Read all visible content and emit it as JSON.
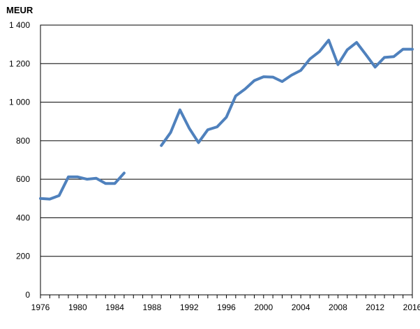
{
  "chart_data": {
    "type": "line",
    "title": "",
    "ylabel": "MEUR",
    "xlabel": "",
    "xlim": [
      1976,
      2016
    ],
    "ylim": [
      0,
      1400
    ],
    "grid": "horizontal",
    "legend": "none",
    "xticks": [
      "1976",
      "1980",
      "1984",
      "1988",
      "1992",
      "1996",
      "2000",
      "2004",
      "2008",
      "2012",
      "2016"
    ],
    "yticks": [
      "0",
      "200",
      "400",
      "600",
      "800",
      "1 000",
      "1 200",
      "1 400"
    ],
    "series": [
      {
        "color": "#4F81BD",
        "segments": [
          {
            "x": [
              1976,
              1977,
              1978,
              1979,
              1980,
              1981,
              1982,
              1983,
              1984,
              1985
            ],
            "y": [
              500,
              497,
              515,
              612,
              612,
              600,
              605,
              578,
              578,
              632
            ]
          },
          {
            "x": [
              1989,
              1990,
              1991,
              1992,
              1993,
              1994,
              1995,
              1996,
              1997,
              1998,
              1999,
              2000,
              2001,
              2002,
              2003,
              2004,
              2005,
              2006,
              2007,
              2008,
              2009,
              2010,
              2011,
              2012,
              2013,
              2014,
              2015,
              2016
            ],
            "y": [
              775,
              842,
              960,
              865,
              790,
              857,
              872,
              922,
              1032,
              1068,
              1112,
              1132,
              1130,
              1107,
              1140,
              1165,
              1225,
              1262,
              1322,
              1195,
              1272,
              1310,
              1247,
              1182,
              1232,
              1236,
              1275,
              1275
            ]
          }
        ]
      }
    ]
  }
}
